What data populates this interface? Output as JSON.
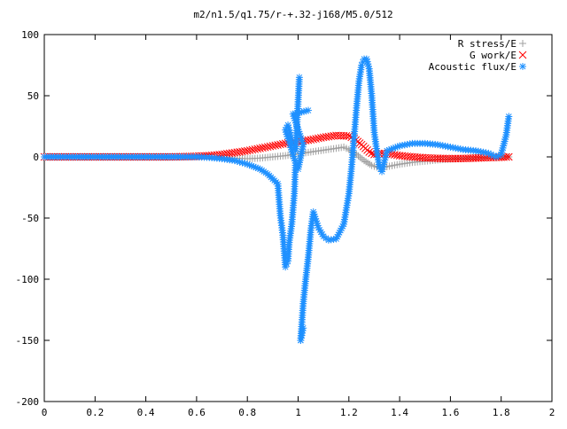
{
  "chart_data": {
    "type": "scatter",
    "title": "m2/n1.5/q1.75/r-+.32-j168/M5.0/512",
    "xlabel": "",
    "ylabel": "",
    "xlim": [
      0,
      2
    ],
    "ylim": [
      -200,
      100
    ],
    "xticks": [
      "0",
      "0.2",
      "0.4",
      "0.6",
      "0.8",
      "1",
      "1.2",
      "1.4",
      "1.6",
      "1.8",
      "2"
    ],
    "yticks": [
      "100",
      "50",
      "0",
      "-50",
      "-100",
      "-150",
      "-200"
    ],
    "grid": false,
    "legend_position": "top-right",
    "series": [
      {
        "name": "R stress/E",
        "marker": "plus",
        "color": "#a0a0a0",
        "points": [
          [
            0,
            0
          ],
          [
            0.1,
            0
          ],
          [
            0.2,
            0
          ],
          [
            0.3,
            0
          ],
          [
            0.4,
            0
          ],
          [
            0.5,
            0
          ],
          [
            0.6,
            0
          ],
          [
            0.65,
            0
          ],
          [
            0.7,
            -0.5
          ],
          [
            0.75,
            -1
          ],
          [
            0.8,
            -1.5
          ],
          [
            0.85,
            -1
          ],
          [
            0.9,
            0
          ],
          [
            0.95,
            1
          ],
          [
            1.0,
            2.5
          ],
          [
            1.05,
            4
          ],
          [
            1.1,
            5.5
          ],
          [
            1.15,
            7
          ],
          [
            1.18,
            8
          ],
          [
            1.2,
            6
          ],
          [
            1.23,
            2
          ],
          [
            1.26,
            -3
          ],
          [
            1.29,
            -7
          ],
          [
            1.32,
            -9
          ],
          [
            1.35,
            -8
          ],
          [
            1.4,
            -6
          ],
          [
            1.45,
            -4.5
          ],
          [
            1.5,
            -3.5
          ],
          [
            1.55,
            -2.5
          ],
          [
            1.6,
            -1.8
          ],
          [
            1.65,
            -1.2
          ],
          [
            1.7,
            -0.8
          ],
          [
            1.75,
            -0.5
          ],
          [
            1.8,
            -0.2
          ],
          [
            1.83,
            0
          ]
        ]
      },
      {
        "name": "G work/E",
        "marker": "cross",
        "color": "#ff0000",
        "points": [
          [
            0,
            0
          ],
          [
            0.1,
            0
          ],
          [
            0.2,
            0
          ],
          [
            0.3,
            0
          ],
          [
            0.4,
            0
          ],
          [
            0.5,
            0
          ],
          [
            0.6,
            0.5
          ],
          [
            0.65,
            1
          ],
          [
            0.7,
            2
          ],
          [
            0.75,
            3.5
          ],
          [
            0.8,
            5
          ],
          [
            0.85,
            7
          ],
          [
            0.9,
            9
          ],
          [
            0.95,
            11
          ],
          [
            1.0,
            12.5
          ],
          [
            1.05,
            14
          ],
          [
            1.1,
            16
          ],
          [
            1.15,
            17.5
          ],
          [
            1.2,
            17
          ],
          [
            1.22,
            15
          ],
          [
            1.25,
            10
          ],
          [
            1.28,
            4
          ],
          [
            1.3,
            2
          ],
          [
            1.33,
            3
          ],
          [
            1.36,
            2.5
          ],
          [
            1.4,
            1
          ],
          [
            1.45,
            0
          ],
          [
            1.5,
            -0.8
          ],
          [
            1.55,
            -1.2
          ],
          [
            1.6,
            -1.4
          ],
          [
            1.65,
            -1.3
          ],
          [
            1.7,
            -1
          ],
          [
            1.75,
            -0.6
          ],
          [
            1.8,
            -0.3
          ],
          [
            1.83,
            0
          ]
        ]
      },
      {
        "name": "Acoustic flux/E",
        "marker": "star",
        "color": "#1e90ff",
        "points": [
          [
            0,
            0
          ],
          [
            0.1,
            0
          ],
          [
            0.2,
            0
          ],
          [
            0.3,
            0
          ],
          [
            0.4,
            0
          ],
          [
            0.5,
            0
          ],
          [
            0.6,
            0
          ],
          [
            0.65,
            -0.5
          ],
          [
            0.7,
            -1.5
          ],
          [
            0.75,
            -3
          ],
          [
            0.8,
            -6
          ],
          [
            0.85,
            -10
          ],
          [
            0.88,
            -14
          ],
          [
            0.9,
            -18
          ],
          [
            0.92,
            -22
          ],
          [
            0.93,
            -48
          ],
          [
            0.94,
            -64
          ],
          [
            0.95,
            -90
          ],
          [
            0.96,
            -85
          ],
          [
            0.965,
            -70
          ],
          [
            0.975,
            -55
          ],
          [
            0.985,
            -30
          ],
          [
            0.99,
            -5
          ],
          [
            0.95,
            22
          ],
          [
            0.96,
            26
          ],
          [
            0.97,
            18
          ],
          [
            0.98,
            10
          ],
          [
            0.99,
            5
          ],
          [
            1.0,
            45
          ],
          [
            1.005,
            65
          ],
          [
            1.01,
            -150
          ],
          [
            1.02,
            -120
          ],
          [
            1.03,
            -100
          ],
          [
            1.04,
            -82
          ],
          [
            1.05,
            -60
          ],
          [
            1.06,
            -45
          ],
          [
            1.08,
            -58
          ],
          [
            1.1,
            -65
          ],
          [
            1.12,
            -68
          ],
          [
            1.15,
            -67
          ],
          [
            1.18,
            -55
          ],
          [
            1.2,
            -30
          ],
          [
            1.21,
            -10
          ],
          [
            1.22,
            15
          ],
          [
            1.23,
            40
          ],
          [
            1.24,
            62
          ],
          [
            1.25,
            75
          ],
          [
            1.26,
            80
          ],
          [
            1.27,
            80
          ],
          [
            1.28,
            72
          ],
          [
            1.29,
            50
          ],
          [
            1.3,
            20
          ],
          [
            1.31,
            5
          ],
          [
            1.32,
            -8
          ],
          [
            1.33,
            -12
          ],
          [
            1.35,
            5
          ],
          [
            1.4,
            9
          ],
          [
            1.45,
            11
          ],
          [
            1.5,
            11
          ],
          [
            1.55,
            10
          ],
          [
            1.6,
            8
          ],
          [
            1.65,
            6
          ],
          [
            1.7,
            5
          ],
          [
            1.75,
            3
          ],
          [
            1.78,
            0
          ],
          [
            1.8,
            2
          ],
          [
            1.82,
            18
          ],
          [
            1.83,
            33
          ],
          [
            1.0,
            -10
          ],
          [
            1.02,
            10
          ],
          [
            0.98,
            35
          ],
          [
            1.04,
            38
          ],
          [
            1.02,
            -140
          ],
          [
            1.01,
            -150
          ]
        ]
      }
    ]
  }
}
